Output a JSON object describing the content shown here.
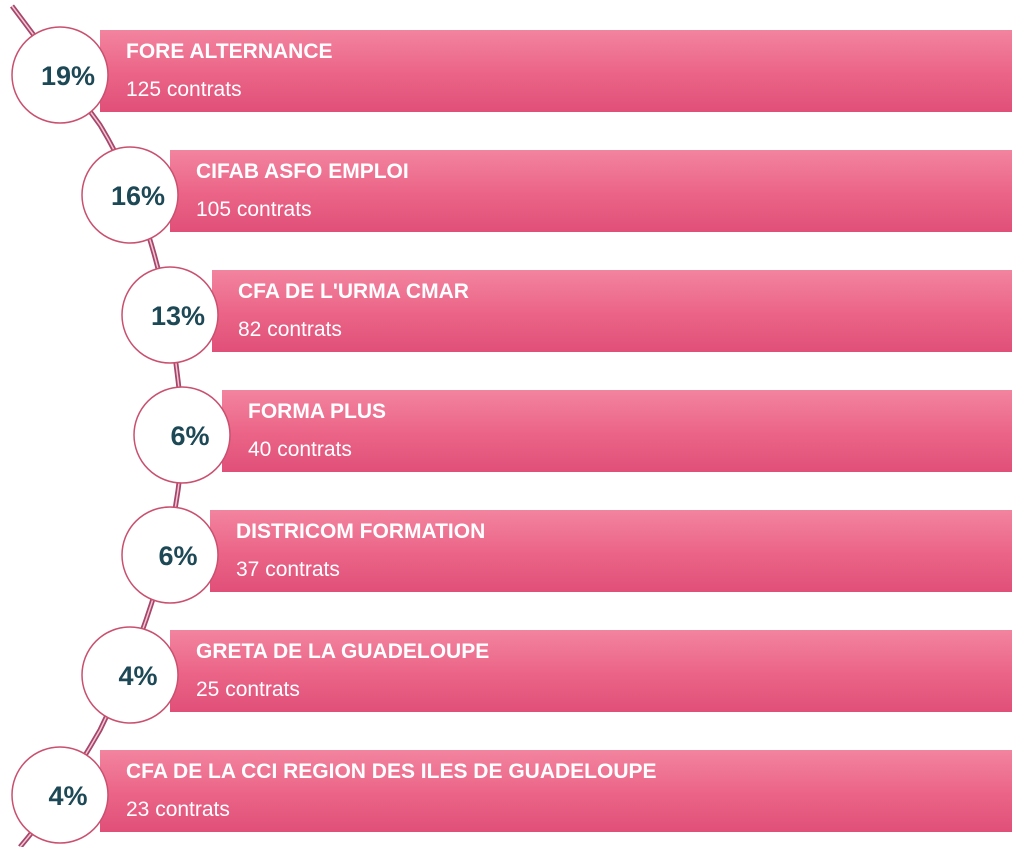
{
  "items": [
    {
      "percent": "19%",
      "name": "FORE ALTERNANCE",
      "contracts": "125 contrats"
    },
    {
      "percent": "16%",
      "name": "CIFAB ASFO EMPLOI",
      "contracts": "105 contrats"
    },
    {
      "percent": "13%",
      "name": "CFA DE L'URMA CMAR",
      "contracts": "82 contrats"
    },
    {
      "percent": "6%",
      "name": "FORMA PLUS",
      "contracts": "40 contrats"
    },
    {
      "percent": "6%",
      "name": "DISTRICOM FORMATION",
      "contracts": "37 contrats"
    },
    {
      "percent": "4%",
      "name": "GRETA DE LA GUADELOUPE",
      "contracts": "25 contrats"
    },
    {
      "percent": "4%",
      "name": "CFA DE LA CCI REGION DES ILES DE GUADELOUPE",
      "contracts": "23 contrats"
    }
  ]
}
